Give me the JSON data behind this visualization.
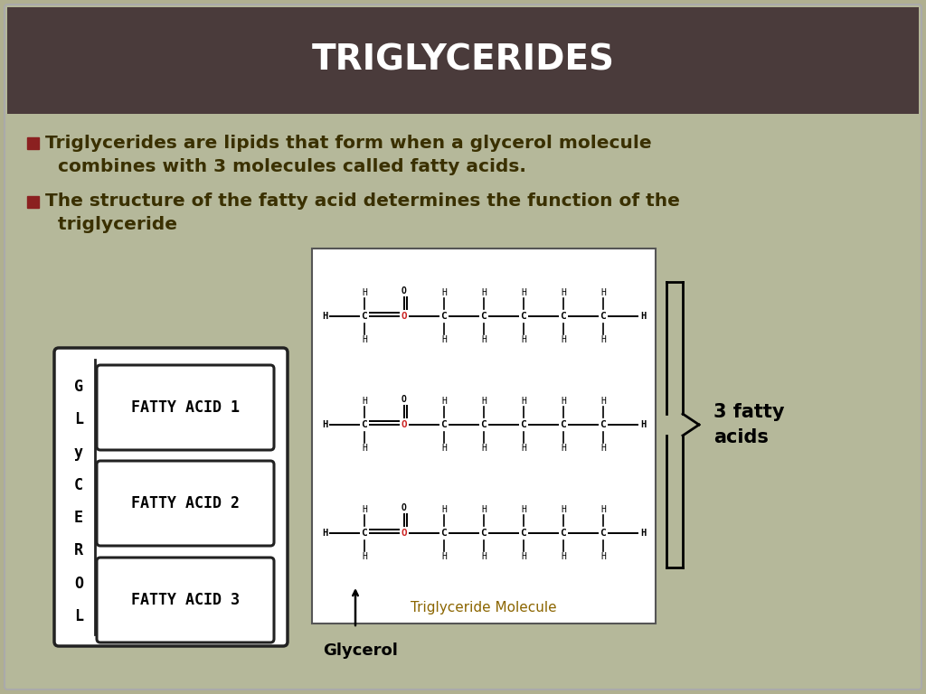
{
  "title": "TRIGLYCERIDES",
  "title_color": "#ffffff",
  "header_bg_color": "#4a3b3b",
  "body_bg_color": "#b5b89a",
  "outer_bg_color": "#b0b090",
  "bullet_color": "#8b2020",
  "bullet1_line1": "Triglycerides are lipids that form when a glycerol molecule",
  "bullet1_line2": "  combines with 3 molecules called fatty acids.",
  "bullet2_line1": "The structure of the fatty acid determines the function of the",
  "bullet2_line2": "  triglyceride",
  "text_color": "#3a3000",
  "fatty_acid_labels": [
    "FATTY ACID 1",
    "FATTY ACID 2",
    "FATTY ACID 3"
  ],
  "glycerol_chars": [
    "G",
    "L",
    "y",
    "C",
    "E",
    "R",
    "O",
    "L"
  ],
  "triglyceride_molecule_label": "Triglyceride Molecule",
  "glycerol_arrow_label": "Glycerol",
  "three_fatty_acids_label": "3 fatty\nacids"
}
